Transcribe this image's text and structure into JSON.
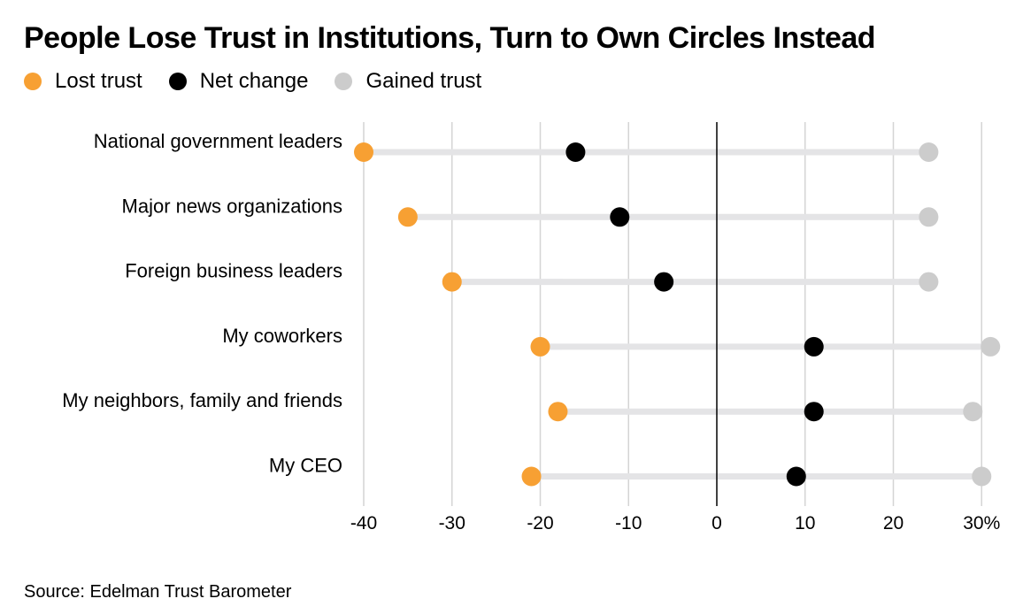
{
  "title": "People Lose Trust in Institutions, Turn to Own Circles Instead",
  "source": "Source: Edelman Trust Barometer",
  "colors": {
    "lost": "#f7a033",
    "net": "#000000",
    "gained": "#cccccc",
    "bar": "#e4e4e6",
    "grid": "#d4d4d4",
    "zero": "#000000"
  },
  "legend": [
    {
      "label": "Lost trust",
      "color": "#f7a033"
    },
    {
      "label": "Net change",
      "color": "#000000"
    },
    {
      "label": "Gained trust",
      "color": "#cccccc"
    }
  ],
  "chart_data": {
    "type": "scatter",
    "title": "People Lose Trust in Institutions, Turn to Own Circles Instead",
    "xlabel": "",
    "ylabel": "",
    "xlim": [
      -40,
      31
    ],
    "xticks": [
      -40,
      -30,
      -20,
      -10,
      0,
      10,
      20,
      30
    ],
    "xtick_labels": [
      "-40",
      "-30",
      "-20",
      "-10",
      "0",
      "10",
      "20",
      "30%"
    ],
    "categories": [
      "National government leaders",
      "Major news organizations",
      "Foreign business leaders",
      "My coworkers",
      "My neighbors, family and friends",
      "My CEO"
    ],
    "series": [
      {
        "name": "Lost trust",
        "values": [
          -40,
          -35,
          -30,
          -20,
          -18,
          -21
        ]
      },
      {
        "name": "Net change",
        "values": [
          -16,
          -11,
          -6,
          11,
          11,
          9
        ]
      },
      {
        "name": "Gained trust",
        "values": [
          24,
          24,
          24,
          31,
          29,
          30
        ]
      }
    ]
  }
}
